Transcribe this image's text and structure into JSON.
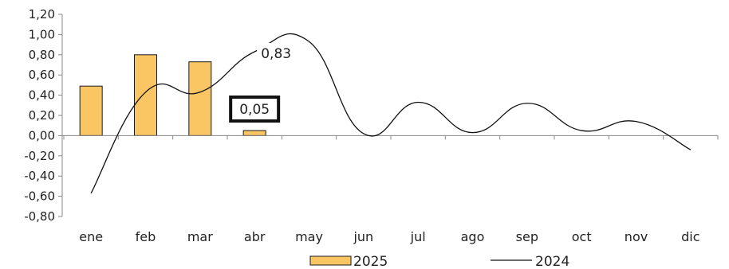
{
  "chart_data": {
    "type": "bar",
    "categories": [
      "ene",
      "feb",
      "mar",
      "abr",
      "may",
      "jun",
      "jul",
      "ago",
      "sep",
      "oct",
      "nov",
      "dic"
    ],
    "series": [
      {
        "name": "2025",
        "type": "bar",
        "values": [
          0.49,
          0.8,
          0.73,
          0.05,
          null,
          null,
          null,
          null,
          null,
          null,
          null,
          null
        ]
      },
      {
        "name": "2024",
        "type": "line",
        "values": [
          -0.57,
          0.43,
          0.43,
          0.83,
          0.93,
          0.02,
          0.33,
          0.03,
          0.32,
          0.05,
          0.14,
          -0.14
        ]
      }
    ],
    "y_ticks": [
      "1,20",
      "1,00",
      "0,80",
      "0,60",
      "0,40",
      "0,20",
      "0,00",
      "-0,20",
      "-0,40",
      "-0,60",
      "-0,80"
    ],
    "ylim": [
      -0.8,
      1.2
    ],
    "annotations": [
      {
        "text": "0,83",
        "series": "2024",
        "category": "abr"
      },
      {
        "text": "0,05",
        "series": "2025",
        "category": "abr",
        "boxed": true
      }
    ],
    "legend_position": "bottom",
    "grid": false,
    "colors": {
      "bar_fill": "#FAC663",
      "bar_stroke": "#1a1a1a",
      "line": "#111111",
      "axis": "#888888"
    }
  }
}
